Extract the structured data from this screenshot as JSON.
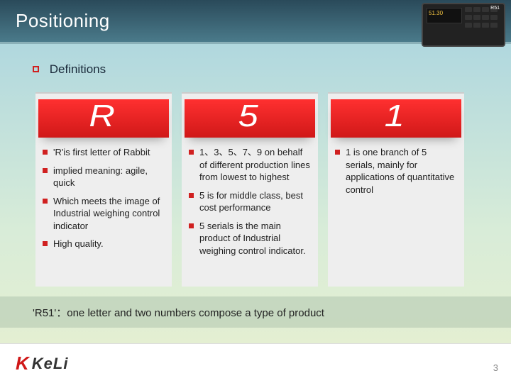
{
  "title": "Positioning",
  "section": "Definitions",
  "device_label": "R51",
  "columns": [
    {
      "big": "R",
      "items": [
        "'R'is first letter of Rabbit",
        "implied meaning: agile, quick",
        "Which meets the image of Industrial weighing control indicator",
        "High quality."
      ]
    },
    {
      "big": "5",
      "items": [
        "1、3、5、7、9 on behalf of different production lines from lowest to highest",
        "5 is for middle class, best cost performance",
        "5 serials is the main product of Industrial weighing control indicator."
      ]
    },
    {
      "big": "1",
      "items": [
        "1 is one branch of 5 serials, mainly for applications of quantitative control"
      ]
    }
  ],
  "summary": "'R51'：one letter and two numbers compose a type of product",
  "logo": {
    "mark": "K",
    "text": "KeLi"
  },
  "page_number": "3",
  "colors": {
    "accent_red": "#d01818",
    "panel_bg": "#eeeeee",
    "header_grad_top": "#2a4a5a",
    "header_grad_bot": "#4a7a8a"
  }
}
